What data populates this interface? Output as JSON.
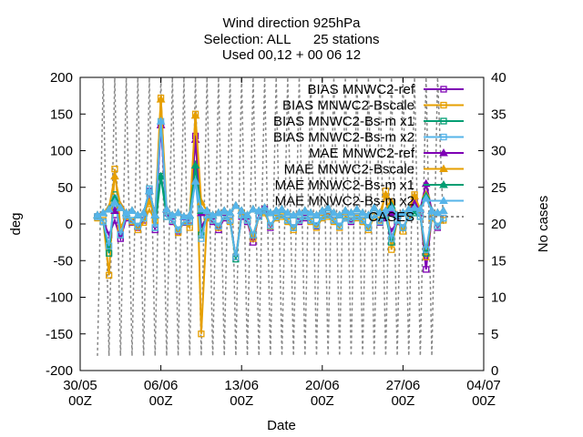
{
  "chart_data": {
    "type": "line",
    "title_lines": [
      "Wind direction 925hPa",
      "Selection: ALL      25 stations",
      "Used 00,12 + 00 06 12"
    ],
    "xlabel": "Date",
    "ylabel": "deg",
    "y2label": "No cases",
    "xlim": [
      0,
      35
    ],
    "ylim": [
      -200,
      200
    ],
    "y2lim": [
      0,
      40
    ],
    "x_ticks": [
      {
        "x": 0,
        "l1": "30/05",
        "l2": "00Z"
      },
      {
        "x": 7,
        "l1": "06/06",
        "l2": "00Z"
      },
      {
        "x": 14,
        "l1": "13/06",
        "l2": "00Z"
      },
      {
        "x": 21,
        "l1": "20/06",
        "l2": "00Z"
      },
      {
        "x": 28,
        "l1": "27/06",
        "l2": "00Z"
      },
      {
        "x": 35,
        "l1": "04/07",
        "l2": "00Z"
      }
    ],
    "y_ticks": [
      "-200",
      "-150",
      "-100",
      "-50",
      "0",
      "50",
      "100",
      "150",
      "200"
    ],
    "y2_ticks": [
      "0",
      "5",
      "10",
      "15",
      "20",
      "25",
      "30",
      "35",
      "40"
    ],
    "legend_position": "top-right",
    "x": [
      1.5,
      2.0,
      2.5,
      3.0,
      3.5,
      4.0,
      4.5,
      5.0,
      5.5,
      6.0,
      6.5,
      7.0,
      7.5,
      8.0,
      8.5,
      9.0,
      9.5,
      10.0,
      10.5,
      11.0,
      11.5,
      12.0,
      12.5,
      13.0,
      13.5,
      14.0,
      14.5,
      15.0,
      15.5,
      16.0,
      16.5,
      17.0,
      17.5,
      18.0,
      18.5,
      19.0,
      19.5,
      20.0,
      20.5,
      21.0,
      21.5,
      22.0,
      22.5,
      23.0,
      23.5,
      24.0,
      24.5,
      25.0,
      25.5,
      26.0,
      26.5,
      27.0,
      27.5,
      28.0,
      28.5,
      29.0,
      29.5,
      30.0,
      30.5,
      31.0,
      31.5
    ],
    "series": [
      {
        "name": "BIAS MNWC2-ref",
        "color": "#7e00b4",
        "marker": "square",
        "dash": false,
        "axis": "y1",
        "values": [
          10,
          3,
          -15,
          5,
          -20,
          8,
          2,
          -5,
          5,
          45,
          -8,
          135,
          15,
          3,
          -10,
          2,
          5,
          120,
          -5,
          10,
          3,
          -8,
          8,
          5,
          -45,
          10,
          3,
          -25,
          12,
          20,
          -5,
          10,
          12,
          5,
          -5,
          3,
          8,
          5,
          -3,
          10,
          15,
          5,
          -3,
          8,
          3,
          10,
          5,
          -5,
          12,
          2,
          8,
          -10,
          3,
          -5,
          10,
          30,
          15,
          -62,
          10,
          -5,
          8
        ]
      },
      {
        "name": "BIAS MNWC2-Bscale",
        "color": "#e69f00",
        "marker": "square",
        "dash": false,
        "axis": "y1",
        "values": [
          8,
          5,
          -70,
          75,
          -5,
          10,
          3,
          -8,
          2,
          20,
          5,
          172,
          10,
          5,
          -12,
          3,
          -5,
          150,
          -150,
          8,
          5,
          -5,
          10,
          3,
          -45,
          15,
          5,
          -20,
          10,
          15,
          -3,
          8,
          10,
          3,
          -8,
          5,
          10,
          3,
          -5,
          8,
          10,
          3,
          -5,
          10,
          5,
          8,
          3,
          -8,
          10,
          5,
          45,
          -35,
          5,
          -10,
          12,
          40,
          10,
          -45,
          8,
          -3,
          5
        ]
      },
      {
        "name": "BIAS MNWC2-Bs-m x1",
        "color": "#009e73",
        "marker": "square",
        "dash": false,
        "axis": "y1",
        "values": [
          10,
          3,
          -40,
          40,
          -15,
          12,
          5,
          -3,
          8,
          48,
          -5,
          65,
          10,
          5,
          -8,
          3,
          3,
          82,
          -15,
          12,
          5,
          -3,
          10,
          5,
          -48,
          12,
          5,
          -15,
          10,
          18,
          -2,
          10,
          12,
          5,
          -5,
          5,
          10,
          5,
          -2,
          10,
          12,
          5,
          -3,
          8,
          5,
          10,
          5,
          -5,
          12,
          3,
          12,
          -25,
          5,
          -5,
          10,
          15,
          10,
          -40,
          10,
          -3,
          8
        ]
      },
      {
        "name": "BIAS MNWC2-Bs-m x2",
        "color": "#56b4e9",
        "marker": "square",
        "dash": false,
        "axis": "y1",
        "values": [
          10,
          3,
          -30,
          35,
          -15,
          12,
          5,
          -3,
          8,
          48,
          -5,
          140,
          10,
          5,
          -8,
          3,
          3,
          60,
          -20,
          12,
          5,
          -3,
          10,
          5,
          -45,
          12,
          5,
          -15,
          10,
          18,
          -2,
          10,
          12,
          5,
          -5,
          5,
          10,
          5,
          -2,
          10,
          12,
          5,
          -3,
          8,
          5,
          10,
          5,
          -5,
          12,
          3,
          15,
          -20,
          5,
          -5,
          10,
          20,
          10,
          -35,
          10,
          -3,
          8
        ]
      },
      {
        "name": "MAE MNWC2-ref",
        "color": "#7e00b4",
        "marker": "triangle",
        "dash": false,
        "axis": "y1",
        "values": [
          12,
          15,
          20,
          18,
          25,
          15,
          18,
          12,
          15,
          45,
          12,
          135,
          20,
          12,
          15,
          10,
          12,
          115,
          15,
          18,
          12,
          15,
          18,
          15,
          25,
          18,
          12,
          20,
          18,
          22,
          15,
          18,
          20,
          15,
          12,
          15,
          18,
          15,
          12,
          18,
          22,
          15,
          12,
          18,
          15,
          20,
          15,
          12,
          22,
          15,
          18,
          15,
          12,
          15,
          20,
          28,
          20,
          55,
          18,
          15,
          18
        ]
      },
      {
        "name": "MAE MNWC2-Bscale",
        "color": "#e69f00",
        "marker": "triangle",
        "dash": false,
        "axis": "y1",
        "values": [
          12,
          15,
          22,
          65,
          25,
          15,
          18,
          12,
          15,
          30,
          12,
          170,
          20,
          12,
          15,
          10,
          12,
          148,
          30,
          18,
          12,
          15,
          18,
          15,
          25,
          18,
          12,
          20,
          18,
          22,
          15,
          18,
          20,
          15,
          12,
          15,
          18,
          15,
          12,
          18,
          22,
          15,
          12,
          18,
          15,
          20,
          15,
          12,
          22,
          15,
          40,
          30,
          12,
          15,
          20,
          38,
          20,
          40,
          18,
          15,
          18
        ]
      },
      {
        "name": "MAE MNWC2-Bs-m x1",
        "color": "#009e73",
        "marker": "triangle",
        "dash": false,
        "axis": "y1",
        "values": [
          12,
          15,
          20,
          35,
          22,
          15,
          18,
          12,
          15,
          45,
          12,
          65,
          20,
          12,
          15,
          10,
          12,
          80,
          18,
          18,
          12,
          15,
          18,
          15,
          25,
          18,
          12,
          20,
          18,
          22,
          15,
          18,
          20,
          15,
          12,
          15,
          18,
          15,
          12,
          18,
          22,
          15,
          12,
          18,
          15,
          20,
          15,
          12,
          22,
          15,
          18,
          25,
          12,
          15,
          20,
          20,
          20,
          38,
          18,
          15,
          18
        ]
      },
      {
        "name": "MAE MNWC2-Bs-m x2",
        "color": "#56b4e9",
        "marker": "triangle",
        "dash": false,
        "axis": "y1",
        "values": [
          12,
          15,
          20,
          30,
          22,
          15,
          18,
          12,
          15,
          45,
          12,
          140,
          20,
          12,
          15,
          10,
          12,
          58,
          20,
          18,
          12,
          15,
          18,
          15,
          25,
          18,
          12,
          20,
          18,
          22,
          15,
          18,
          20,
          15,
          12,
          15,
          18,
          15,
          12,
          18,
          22,
          15,
          12,
          18,
          15,
          20,
          15,
          12,
          22,
          15,
          18,
          22,
          12,
          15,
          20,
          22,
          20,
          35,
          18,
          15,
          18
        ]
      },
      {
        "name": "CASES",
        "color": "#888888",
        "marker": "none",
        "dash": true,
        "axis": "y2",
        "values": [
          2,
          40,
          2,
          40,
          2,
          40,
          2,
          40,
          2,
          40,
          2,
          40,
          2,
          40,
          2,
          40,
          2,
          40,
          2,
          40,
          2,
          40,
          2,
          40,
          2,
          40,
          2,
          40,
          2,
          40,
          2,
          40,
          2,
          40,
          2,
          40,
          2,
          40,
          2,
          40,
          2,
          40,
          2,
          40,
          2,
          40,
          2,
          40,
          2,
          40,
          2,
          40,
          2,
          40,
          2,
          40,
          2,
          40,
          2,
          40,
          20
        ]
      }
    ]
  }
}
